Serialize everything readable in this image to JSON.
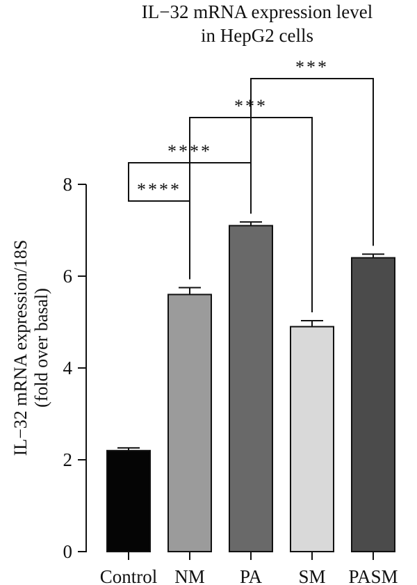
{
  "chart_data": {
    "type": "bar",
    "title": [
      "IL−32 mRNA expression level",
      "in HepG2 cells"
    ],
    "ylabel": [
      "IL−32 mRNA expression/18S",
      "(fold over basal)"
    ],
    "xlabel": "",
    "ylim": [
      0,
      8
    ],
    "yticks": [
      0,
      2,
      4,
      6,
      8
    ],
    "categories": [
      "Control",
      "NM",
      "PA",
      "SM",
      "PASM"
    ],
    "values": [
      2.2,
      5.6,
      7.1,
      4.9,
      6.4
    ],
    "errors": [
      0.06,
      0.15,
      0.08,
      0.13,
      0.08
    ],
    "colors": [
      "#050505",
      "#9b9b9b",
      "#696969",
      "#d9d9d9",
      "#4b4b4b"
    ],
    "grid": false,
    "significance": [
      {
        "from": "Control",
        "to": "NM",
        "label": "****"
      },
      {
        "from": "Control",
        "to": "PA",
        "label": "****"
      },
      {
        "from": "NM",
        "to": "SM",
        "label": "***"
      },
      {
        "from": "PA",
        "to": "PASM",
        "label": "***"
      }
    ]
  }
}
